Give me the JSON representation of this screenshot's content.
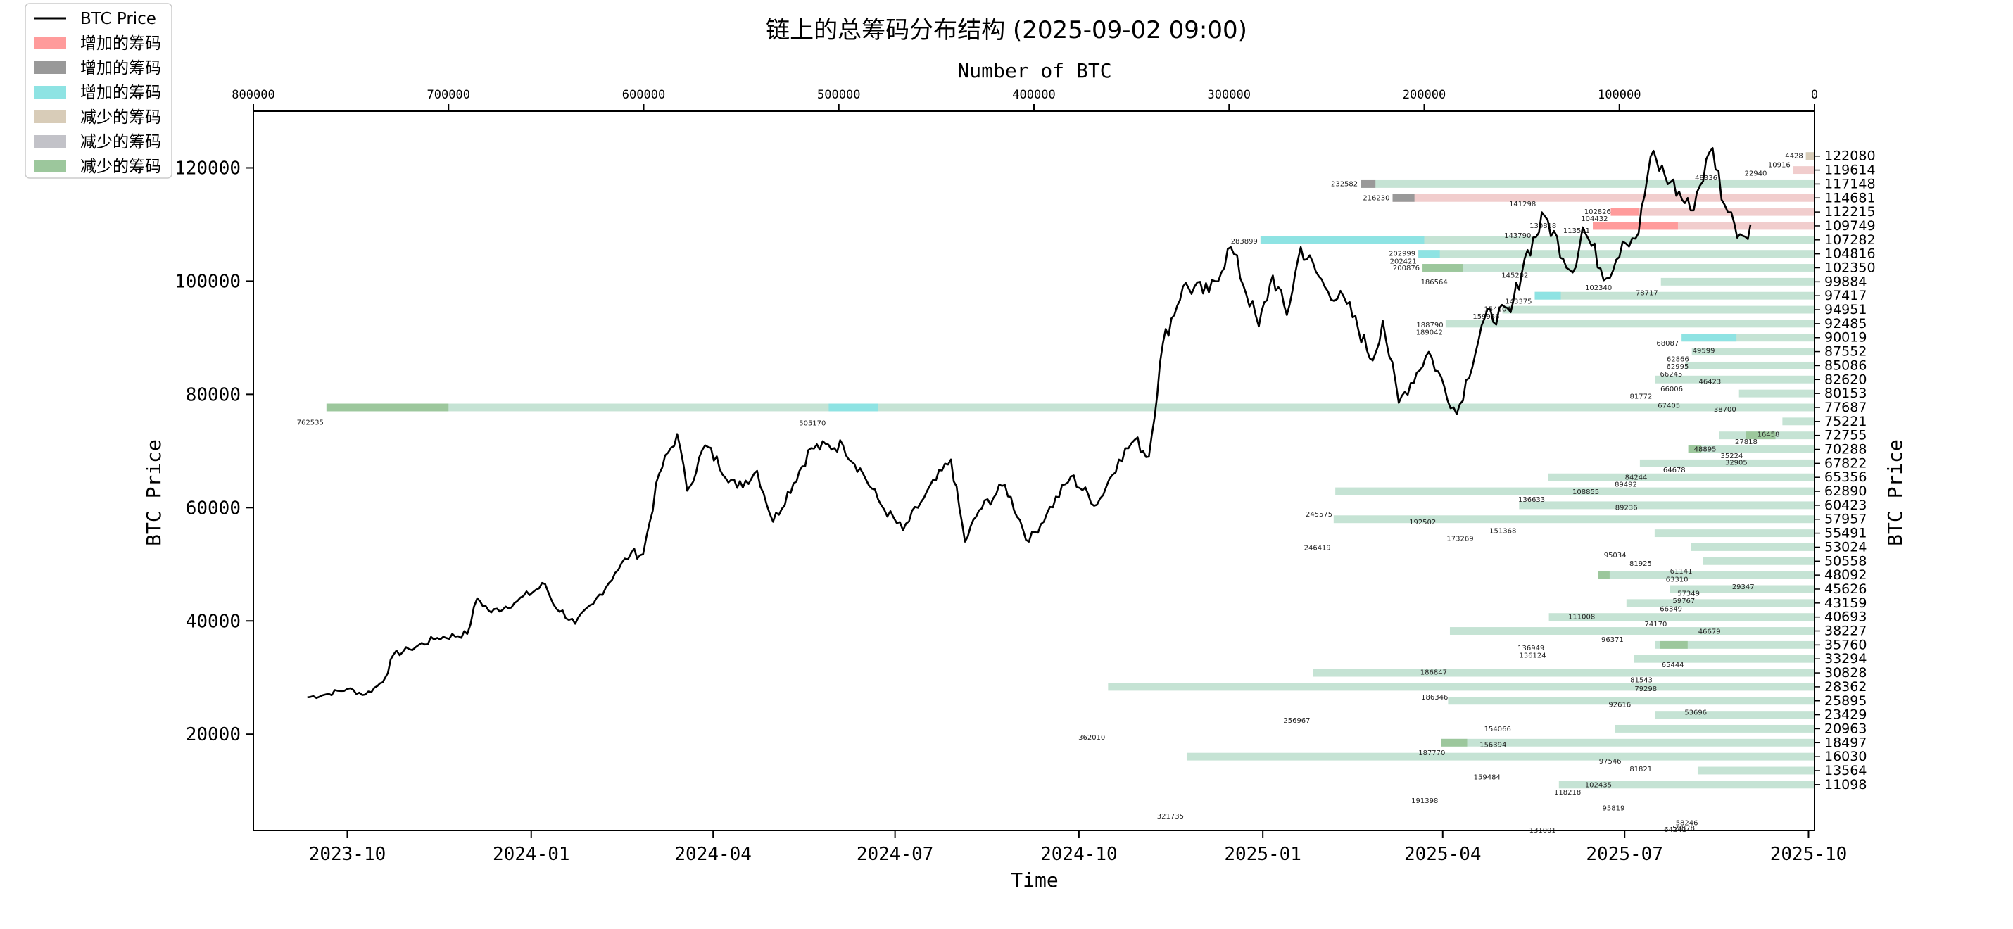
{
  "title": "链上的总筹码分布结构 (2025-09-02 09:00)",
  "colors": {
    "price_line": "#000000",
    "inc_red": "#ff9b9b",
    "inc_gray": "#999999",
    "inc_cyan": "#8ee3e3",
    "dec_tan": "#d8ccb8",
    "dec_gray": "#c2c2c8",
    "dec_green": "#9cc79c",
    "profile_red": "#f0c8c8",
    "profile_green": "#bfe0cf"
  },
  "legend": [
    {
      "label": "BTC Price",
      "type": "line",
      "color": "#000000"
    },
    {
      "label": "增加的筹码",
      "type": "patch",
      "color": "#ff9b9b"
    },
    {
      "label": "增加的筹码",
      "type": "patch",
      "color": "#999999"
    },
    {
      "label": "增加的筹码",
      "type": "patch",
      "color": "#8ee3e3"
    },
    {
      "label": "减少的筹码",
      "type": "patch",
      "color": "#d8ccb8"
    },
    {
      "label": "减少的筹码",
      "type": "patch",
      "color": "#c2c2c8"
    },
    {
      "label": "减少的筹码",
      "type": "patch",
      "color": "#9cc79c"
    }
  ],
  "chart_data": {
    "type": "line",
    "title": "链上的总筹码分布结构 (2025-09-02 09:00)",
    "xlabel": "Time",
    "ylabel": "BTC Price",
    "ylabel_right": "BTC Price",
    "xlabel_top": "Number of BTC",
    "x_ticks": [
      "2023-10",
      "2024-01",
      "2024-04",
      "2024-07",
      "2024-10",
      "2025-01",
      "2025-04",
      "2025-07",
      "2025-10"
    ],
    "y_ticks": [
      "20000",
      "40000",
      "60000",
      "80000",
      "100000",
      "120000"
    ],
    "top_ticks": [
      "800000",
      "700000",
      "600000",
      "500000",
      "400000",
      "300000",
      "200000",
      "100000",
      "0"
    ],
    "top_axis_range": [
      0,
      800000
    ],
    "top_axis_reversed": true,
    "xlim": [
      "2023-08-15",
      "2025-10-04"
    ],
    "ylim": [
      3000,
      130000
    ],
    "grid": false,
    "legend_position": "top-left",
    "price_series": {
      "name": "BTC Price",
      "points": [
        [
          "2023-09-11",
          26500
        ],
        [
          "2023-09-20",
          27000
        ],
        [
          "2023-10-01",
          28000
        ],
        [
          "2023-10-10",
          27000
        ],
        [
          "2023-10-16",
          28500
        ],
        [
          "2023-10-20",
          30000
        ],
        [
          "2023-10-24",
          34000
        ],
        [
          "2023-11-01",
          35000
        ],
        [
          "2023-11-15",
          37000
        ],
        [
          "2023-11-30",
          37700
        ],
        [
          "2023-12-05",
          44000
        ],
        [
          "2023-12-12",
          41500
        ],
        [
          "2023-12-25",
          43500
        ],
        [
          "2024-01-08",
          46500
        ],
        [
          "2024-01-12",
          43000
        ],
        [
          "2024-01-23",
          39500
        ],
        [
          "2024-02-01",
          43000
        ],
        [
          "2024-02-12",
          48500
        ],
        [
          "2024-02-20",
          52000
        ],
        [
          "2024-02-26",
          51800
        ],
        [
          "2024-03-05",
          66000
        ],
        [
          "2024-03-14",
          73000
        ],
        [
          "2024-03-19",
          63000
        ],
        [
          "2024-03-28",
          71000
        ],
        [
          "2024-04-13",
          63500
        ],
        [
          "2024-04-23",
          66500
        ],
        [
          "2024-05-01",
          57500
        ],
        [
          "2024-05-20",
          70500
        ],
        [
          "2024-06-05",
          71000
        ],
        [
          "2024-06-15",
          66000
        ],
        [
          "2024-06-24",
          60500
        ],
        [
          "2024-07-05",
          56000
        ],
        [
          "2024-07-14",
          61000
        ],
        [
          "2024-07-29",
          68500
        ],
        [
          "2024-08-05",
          54000
        ],
        [
          "2024-08-12",
          59500
        ],
        [
          "2024-08-25",
          64000
        ],
        [
          "2024-09-06",
          54000
        ],
        [
          "2024-09-15",
          59000
        ],
        [
          "2024-09-27",
          65500
        ],
        [
          "2024-10-10",
          60500
        ],
        [
          "2024-10-21",
          68500
        ],
        [
          "2024-10-29",
          72000
        ],
        [
          "2024-11-05",
          69000
        ],
        [
          "2024-11-12",
          89000
        ],
        [
          "2024-11-22",
          99000
        ],
        [
          "2024-12-05",
          98000
        ],
        [
          "2024-12-16",
          106000
        ],
        [
          "2024-12-30",
          92000
        ],
        [
          "2025-01-06",
          101000
        ],
        [
          "2025-01-13",
          94000
        ],
        [
          "2025-01-20",
          106000
        ],
        [
          "2025-02-01",
          99000
        ],
        [
          "2025-02-12",
          96000
        ],
        [
          "2025-02-25",
          86000
        ],
        [
          "2025-03-02",
          93000
        ],
        [
          "2025-03-10",
          78500
        ],
        [
          "2025-03-25",
          87500
        ],
        [
          "2025-04-08",
          76500
        ],
        [
          "2025-04-22",
          93500
        ],
        [
          "2025-05-05",
          94500
        ],
        [
          "2025-05-12",
          104000
        ],
        [
          "2025-05-22",
          111500
        ],
        [
          "2025-06-05",
          101500
        ],
        [
          "2025-06-10",
          109500
        ],
        [
          "2025-06-22",
          100500
        ],
        [
          "2025-06-30",
          107000
        ],
        [
          "2025-07-08",
          108500
        ],
        [
          "2025-07-14",
          122000
        ],
        [
          "2025-07-24",
          117500
        ],
        [
          "2025-08-03",
          112500
        ],
        [
          "2025-08-14",
          123500
        ],
        [
          "2025-08-20",
          113500
        ],
        [
          "2025-08-25",
          110000
        ],
        [
          "2025-08-29",
          108000
        ],
        [
          "2025-09-02",
          110000
        ]
      ]
    },
    "distribution": [
      {
        "price": 122080,
        "value": 4428,
        "sign": "dec"
      },
      {
        "price": 119614,
        "value": 10916,
        "sign": "inc"
      },
      {
        "price": 117148,
        "value": 232582,
        "sign": "dec"
      },
      {
        "price": 114681,
        "value": 216230,
        "sign": "inc"
      },
      {
        "price": 112215,
        "value": 104432,
        "sign": "inc"
      },
      {
        "price": 109749,
        "value": 113591,
        "sign": "inc"
      },
      {
        "price": 107282,
        "value": 283899,
        "sign": "dec"
      },
      {
        "price": 104816,
        "value": 202999,
        "sign": "dec"
      },
      {
        "price": 102350,
        "value": 200876,
        "sign": "dec"
      },
      {
        "price": 99884,
        "value": 78717,
        "sign": "dec"
      },
      {
        "price": 97417,
        "value": 143375,
        "sign": "dec"
      },
      {
        "price": 94951,
        "value": 159936,
        "sign": "dec"
      },
      {
        "price": 92485,
        "value": 189042,
        "sign": "dec"
      },
      {
        "price": 90019,
        "value": 68087,
        "sign": "dec"
      },
      {
        "price": 87552,
        "value": 62866,
        "sign": "dec"
      },
      {
        "price": 85086,
        "value": 66245,
        "sign": "dec"
      },
      {
        "price": 82620,
        "value": 81772,
        "sign": "dec"
      },
      {
        "price": 80153,
        "value": 38700,
        "sign": "dec"
      },
      {
        "price": 77687,
        "value": 762535,
        "sign": "dec"
      },
      {
        "price": 75221,
        "value": 16458,
        "sign": "dec"
      },
      {
        "price": 72755,
        "value": 48895,
        "sign": "dec"
      },
      {
        "price": 70288,
        "value": 64678,
        "sign": "dec"
      },
      {
        "price": 67822,
        "value": 89492,
        "sign": "dec"
      },
      {
        "price": 65356,
        "value": 136633,
        "sign": "dec"
      },
      {
        "price": 62890,
        "value": 245575,
        "sign": "dec"
      },
      {
        "price": 60423,
        "value": 151368,
        "sign": "dec"
      },
      {
        "price": 57957,
        "value": 246419,
        "sign": "dec"
      },
      {
        "price": 55491,
        "value": 81925,
        "sign": "dec"
      },
      {
        "price": 53024,
        "value": 63310,
        "sign": "dec"
      },
      {
        "price": 50558,
        "value": 57349,
        "sign": "dec"
      },
      {
        "price": 48092,
        "value": 111008,
        "sign": "dec"
      },
      {
        "price": 45626,
        "value": 74170,
        "sign": "dec"
      },
      {
        "price": 43159,
        "value": 96371,
        "sign": "dec"
      },
      {
        "price": 40693,
        "value": 136124,
        "sign": "dec"
      },
      {
        "price": 38227,
        "value": 186847,
        "sign": "dec"
      },
      {
        "price": 35760,
        "value": 81543,
        "sign": "dec"
      },
      {
        "price": 33294,
        "value": 92616,
        "sign": "dec"
      },
      {
        "price": 30828,
        "value": 256967,
        "sign": "dec"
      },
      {
        "price": 28362,
        "value": 362010,
        "sign": "dec"
      },
      {
        "price": 25895,
        "value": 187770,
        "sign": "dec"
      },
      {
        "price": 23429,
        "value": 81821,
        "sign": "dec"
      },
      {
        "price": 20963,
        "value": 102435,
        "sign": "dec"
      },
      {
        "price": 18497,
        "value": 191398,
        "sign": "dec"
      },
      {
        "price": 16030,
        "value": 321735,
        "sign": "dec"
      },
      {
        "price": 13564,
        "value": 59878,
        "sign": "dec"
      },
      {
        "price": 11098,
        "value": 131001,
        "sign": "dec"
      }
    ],
    "distribution_changes": [
      {
        "price": 122080,
        "from": 0,
        "to": 4428,
        "color": "#d8ccb8"
      },
      {
        "price": 117148,
        "from": 225000,
        "to": 232582,
        "color": "#999999"
      },
      {
        "price": 114681,
        "from": 205000,
        "to": 216230,
        "color": "#999999"
      },
      {
        "price": 112215,
        "from": 90000,
        "to": 104432,
        "color": "#ff9b9b"
      },
      {
        "price": 109749,
        "from": 70000,
        "to": 113591,
        "color": "#ff9b9b"
      },
      {
        "price": 107282,
        "from": 200000,
        "to": 283899,
        "color": "#8ee3e3"
      },
      {
        "price": 104816,
        "from": 192000,
        "to": 202999,
        "color": "#8ee3e3"
      },
      {
        "price": 102350,
        "from": 180000,
        "to": 200876,
        "color": "#9cc79c"
      },
      {
        "price": 97417,
        "from": 130000,
        "to": 143375,
        "color": "#8ee3e3"
      },
      {
        "price": 90019,
        "from": 40000,
        "to": 68087,
        "color": "#8ee3e3"
      },
      {
        "price": 77687,
        "from": 700000,
        "to": 762535,
        "color": "#9cc79c"
      },
      {
        "price": 77687,
        "from": 480000,
        "to": 505170,
        "color": "#8ee3e3"
      },
      {
        "price": 72755,
        "from": 20000,
        "to": 35224,
        "color": "#9cc79c"
      },
      {
        "price": 70288,
        "from": 58000,
        "to": 64678,
        "color": "#9cc79c"
      },
      {
        "price": 48092,
        "from": 105000,
        "to": 111008,
        "color": "#9cc79c"
      },
      {
        "price": 35760,
        "from": 65000,
        "to": 79298,
        "color": "#9cc79c"
      },
      {
        "price": 18497,
        "from": 178000,
        "to": 191398,
        "color": "#9cc79c"
      }
    ],
    "distribution_labels": [
      {
        "price": 122080,
        "text": "4428"
      },
      {
        "price": 120500,
        "text": "10916"
      },
      {
        "price": 119000,
        "text": "22940"
      },
      {
        "price": 117148,
        "text": "232582"
      },
      {
        "price": 118200,
        "text": "48336"
      },
      {
        "price": 114681,
        "text": "216230"
      },
      {
        "price": 113600,
        "text": "141298"
      },
      {
        "price": 112200,
        "text": "102826"
      },
      {
        "price": 111000,
        "text": "104432"
      },
      {
        "price": 109749,
        "text": "130818"
      },
      {
        "price": 108900,
        "text": "113591"
      },
      {
        "price": 108000,
        "text": "143790"
      },
      {
        "price": 107000,
        "text": "283899"
      },
      {
        "price": 104816,
        "text": "202999"
      },
      {
        "price": 103500,
        "text": "202421"
      },
      {
        "price": 102300,
        "text": "200876"
      },
      {
        "price": 101000,
        "text": "145202"
      },
      {
        "price": 99800,
        "text": "186564"
      },
      {
        "price": 98800,
        "text": "102340"
      },
      {
        "price": 97900,
        "text": "78717"
      },
      {
        "price": 96400,
        "text": "143375"
      },
      {
        "price": 95000,
        "text": "154104"
      },
      {
        "price": 93700,
        "text": "159936"
      },
      {
        "price": 92200,
        "text": "188790"
      },
      {
        "price": 90900,
        "text": "189042"
      },
      {
        "price": 89000,
        "text": "68087"
      },
      {
        "price": 87700,
        "text": "49599"
      },
      {
        "price": 86200,
        "text": "62866"
      },
      {
        "price": 84900,
        "text": "62995"
      },
      {
        "price": 83500,
        "text": "66245"
      },
      {
        "price": 82200,
        "text": "46423"
      },
      {
        "price": 80900,
        "text": "66006"
      },
      {
        "price": 79600,
        "text": "81772"
      },
      {
        "price": 78000,
        "text": "67405"
      },
      {
        "price": 77300,
        "text": "38700"
      },
      {
        "price": 75000,
        "text": "762535"
      },
      {
        "price": 74900,
        "text": "505170"
      },
      {
        "price": 72900,
        "text": "16458"
      },
      {
        "price": 71600,
        "text": "27818"
      },
      {
        "price": 70300,
        "text": "48895"
      },
      {
        "price": 69100,
        "text": "35224"
      },
      {
        "price": 67900,
        "text": "32905"
      },
      {
        "price": 66600,
        "text": "64678"
      },
      {
        "price": 65300,
        "text": "84244"
      },
      {
        "price": 64100,
        "text": "89492"
      },
      {
        "price": 62800,
        "text": "108855"
      },
      {
        "price": 61400,
        "text": "136633"
      },
      {
        "price": 60000,
        "text": "89236"
      },
      {
        "price": 58800,
        "text": "245575"
      },
      {
        "price": 57400,
        "text": "192502"
      },
      {
        "price": 55900,
        "text": "151368"
      },
      {
        "price": 54500,
        "text": "173269"
      },
      {
        "price": 52900,
        "text": "246419"
      },
      {
        "price": 51600,
        "text": "95034"
      },
      {
        "price": 50100,
        "text": "81925"
      },
      {
        "price": 48700,
        "text": "61141"
      },
      {
        "price": 47300,
        "text": "63310"
      },
      {
        "price": 46000,
        "text": "29347"
      },
      {
        "price": 44800,
        "text": "57349"
      },
      {
        "price": 43500,
        "text": "59767"
      },
      {
        "price": 42100,
        "text": "66349"
      },
      {
        "price": 40700,
        "text": "111008"
      },
      {
        "price": 39400,
        "text": "74170"
      },
      {
        "price": 38100,
        "text": "46679"
      },
      {
        "price": 36700,
        "text": "96371"
      },
      {
        "price": 35200,
        "text": "136949"
      },
      {
        "price": 33900,
        "text": "136124"
      },
      {
        "price": 32200,
        "text": "65444"
      },
      {
        "price": 30900,
        "text": "186847"
      },
      {
        "price": 29500,
        "text": "81543"
      },
      {
        "price": 28000,
        "text": "79298"
      },
      {
        "price": 26500,
        "text": "186346"
      },
      {
        "price": 25200,
        "text": "92616"
      },
      {
        "price": 23800,
        "text": "53696"
      },
      {
        "price": 22400,
        "text": "256967"
      },
      {
        "price": 20900,
        "text": "154066"
      },
      {
        "price": 19400,
        "text": "362010"
      },
      {
        "price": 18100,
        "text": "156394"
      },
      {
        "price": 16700,
        "text": "187770"
      },
      {
        "price": 15200,
        "text": "97546"
      },
      {
        "price": 13800,
        "text": "81821"
      },
      {
        "price": 12400,
        "text": "159484"
      },
      {
        "price": 11000,
        "text": "102435"
      },
      {
        "price": 9700,
        "text": "118218"
      },
      {
        "price": 8200,
        "text": "191398"
      },
      {
        "price": 6900,
        "text": "95819"
      },
      {
        "price": 5500,
        "text": "321735"
      },
      {
        "price": 4300,
        "text": "58246"
      },
      {
        "price": 3400,
        "text": "59878"
      },
      {
        "price": 3100,
        "text": "64241"
      },
      {
        "price": 3000,
        "text": "131001"
      }
    ]
  }
}
